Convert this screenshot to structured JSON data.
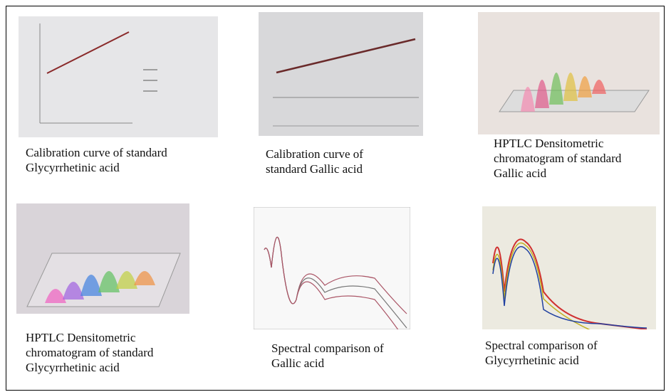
{
  "panels": [
    {
      "caption": [
        "Calibration curve of standard",
        "Glycyrrhetinic acid"
      ]
    },
    {
      "caption": [
        "Calibration curve of",
        "standard Gallic acid"
      ]
    },
    {
      "caption": [
        "HPTLC Densitometric",
        "chromatogram of standard",
        "Gallic acid"
      ]
    },
    {
      "caption": [
        "HPTLC Densitometric",
        "chromatogram of standard",
        "Glycyrrhetinic acid"
      ]
    },
    {
      "caption": [
        "Spectral comparison of",
        "Gallic acid"
      ]
    },
    {
      "caption": [
        "Spectral comparison of",
        "Glycyrrhetinic acid"
      ]
    }
  ]
}
